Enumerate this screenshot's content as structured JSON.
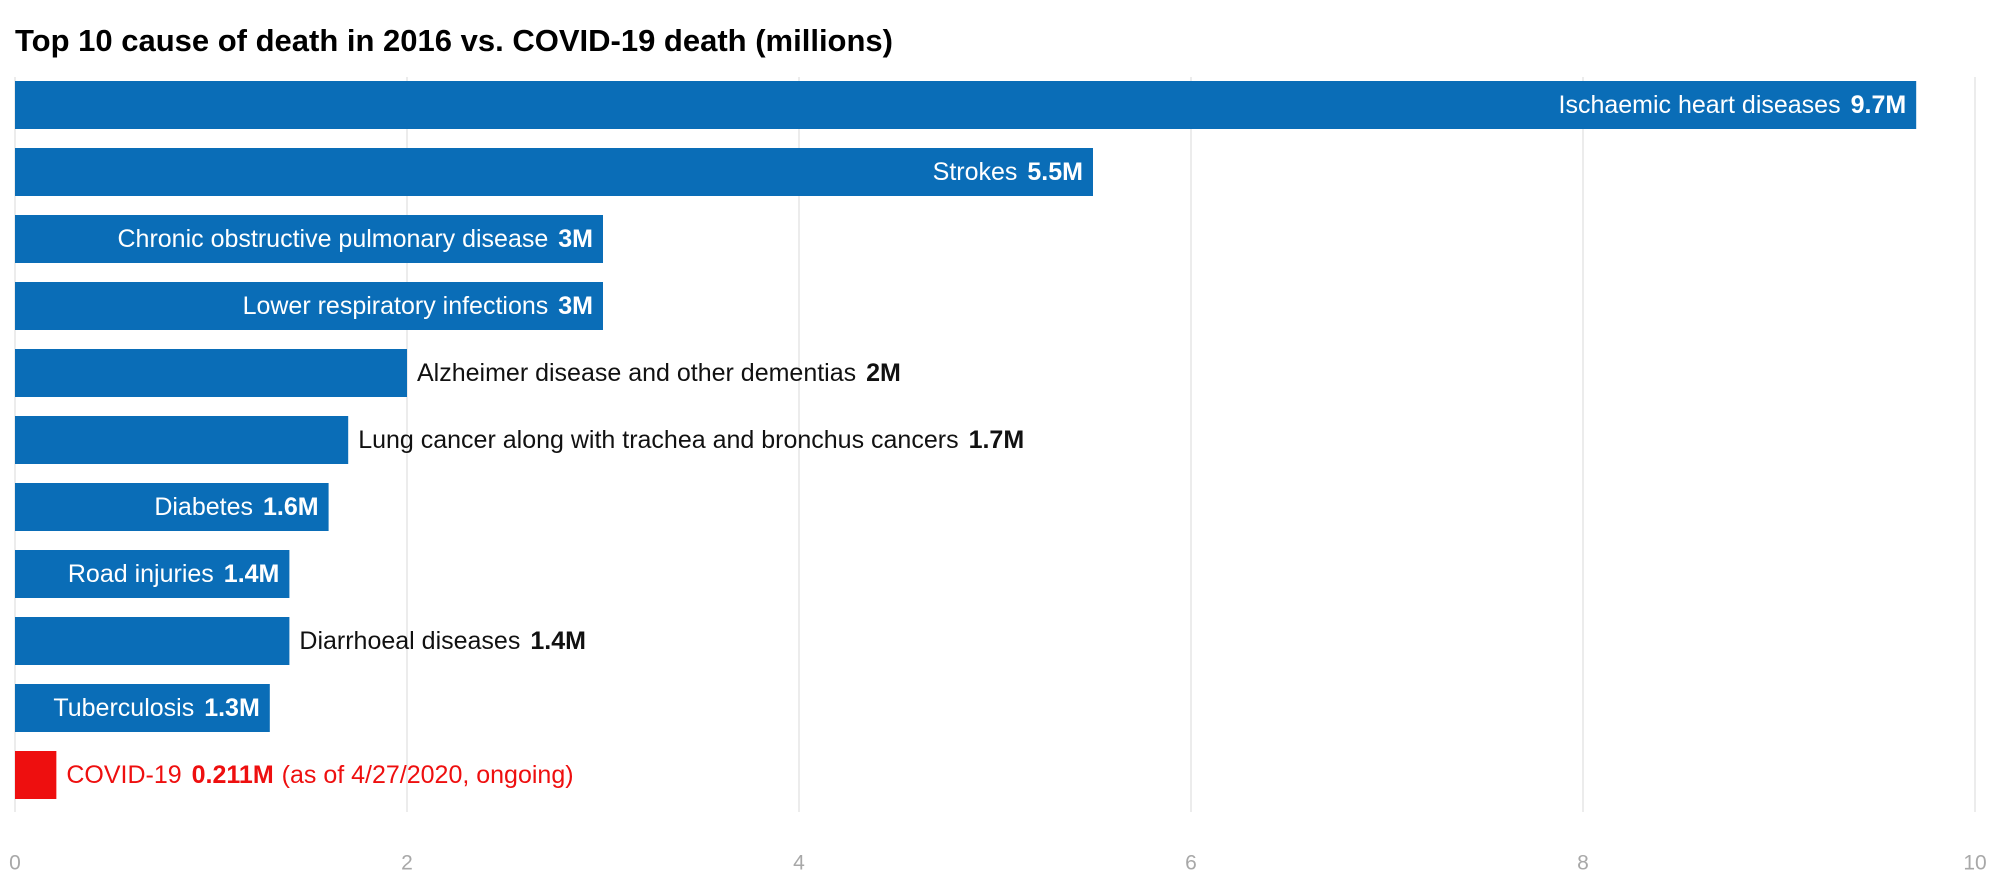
{
  "chart_data": {
    "type": "hbar",
    "title": "Top 10 cause of death in 2016 vs. COVID-19 death (millions)",
    "categories": [
      "Ischaemic heart diseases",
      "Strokes",
      "Chronic obstructive pulmonary disease",
      "Lower respiratory infections",
      "Alzheimer disease and other dementias",
      "Lung cancer along with trachea and bronchus cancers",
      "Diabetes",
      "Road injuries",
      "Diarrhoeal diseases",
      "Tuberculosis",
      "COVID-19"
    ],
    "values": [
      9.7,
      5.5,
      3,
      3,
      2,
      1.7,
      1.6,
      1.4,
      1.4,
      1.3,
      0.211
    ],
    "value_labels": [
      "9.7M",
      "5.5M",
      "3M",
      "3M",
      "2M",
      "1.7M",
      "1.6M",
      "1.4M",
      "1.4M",
      "1.3M",
      "0.211M"
    ],
    "colors": [
      "#0a6db7",
      "#0a6db7",
      "#0a6db7",
      "#0a6db7",
      "#0a6db7",
      "#0a6db7",
      "#0a6db7",
      "#0a6db7",
      "#0a6db7",
      "#0a6db7",
      "#ee0f0f"
    ],
    "covid_note": "(as of 4/27/2020, ongoing)",
    "xlim": [
      0,
      10
    ],
    "xticks": [
      0,
      2,
      4,
      6,
      8,
      10
    ],
    "grid": true
  }
}
